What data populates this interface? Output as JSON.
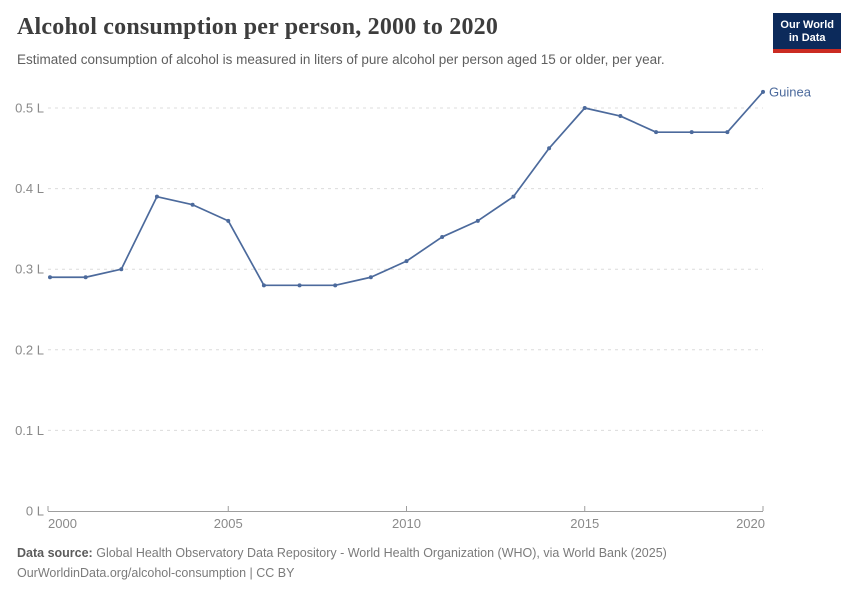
{
  "header": {
    "title": "Alcohol consumption per person, 2000 to 2020",
    "subtitle": "Estimated consumption of alcohol is measured in liters of pure alcohol per person aged 15 or older, per year."
  },
  "logo": {
    "line1": "Our World",
    "line2": "in Data",
    "bg_color": "#0c2a5b",
    "accent_color": "#cb2b22"
  },
  "chart_data": {
    "type": "line",
    "title": "Alcohol consumption per person, 2000 to 2020",
    "xlabel": "",
    "ylabel": "",
    "unit": "L",
    "x": [
      2000,
      2001,
      2002,
      2003,
      2004,
      2005,
      2006,
      2007,
      2008,
      2009,
      2010,
      2011,
      2012,
      2013,
      2014,
      2015,
      2016,
      2017,
      2018,
      2019,
      2020
    ],
    "series": [
      {
        "name": "Guinea",
        "color": "#4C6A9C",
        "values": [
          0.29,
          0.29,
          0.3,
          0.39,
          0.38,
          0.36,
          0.28,
          0.28,
          0.28,
          0.29,
          0.31,
          0.34,
          0.36,
          0.39,
          0.45,
          0.5,
          0.49,
          0.47,
          0.47,
          0.47,
          0.52
        ]
      }
    ],
    "xlim": [
      2000,
      2020
    ],
    "ylim": [
      0,
      0.54
    ],
    "x_ticks": [
      2000,
      2005,
      2010,
      2015,
      2020
    ],
    "y_ticks": [
      0,
      0.1,
      0.2,
      0.3,
      0.4,
      0.5
    ],
    "y_tick_labels": [
      "0 L",
      "0.1 L",
      "0.2 L",
      "0.3 L",
      "0.4 L",
      "0.5 L"
    ],
    "grid": "horizontal-dashed",
    "legend": "inline-end-label"
  },
  "footer": {
    "source_label": "Data source:",
    "source_text": "Global Health Observatory Data Repository - World Health Organization (WHO), via World Bank (2025)",
    "license_line": "OurWorldinData.org/alcohol-consumption | CC BY"
  },
  "colors": {
    "line": "#4C6A9C",
    "grid": "#dcdcdc",
    "axis": "#9e9e9e",
    "tick_label": "#8a8a8a",
    "title": "#3d3d3d",
    "subtitle": "#5f5f5f",
    "footer": "#7b7b7b"
  }
}
